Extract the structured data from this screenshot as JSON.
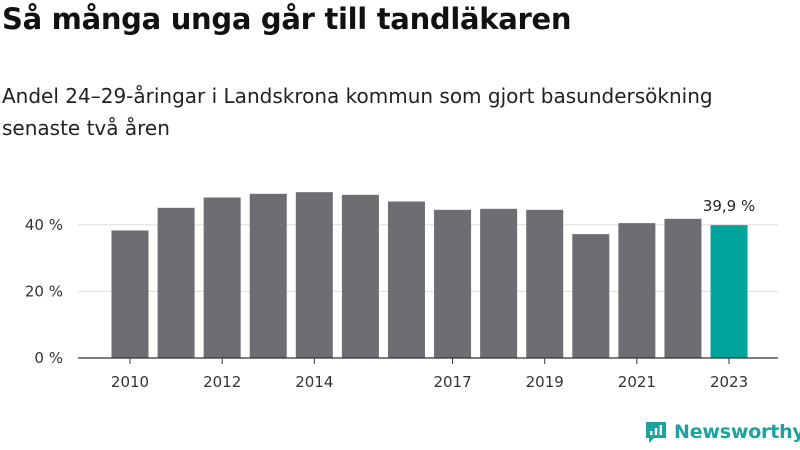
{
  "header": {
    "title": "Så många unga går till tandläkaren",
    "subtitle": "Andel 24–29-åringar i Landskrona kommun som gjort basundersökning senaste två åren"
  },
  "chart_data": {
    "type": "bar",
    "categories": [
      "2010",
      "2011",
      "2012",
      "2013",
      "2014",
      "2015",
      "2016",
      "2017",
      "2018",
      "2019",
      "2020",
      "2021",
      "2022",
      "2023"
    ],
    "x_tick_labels": [
      "2010",
      "",
      "2012",
      "",
      "2014",
      "",
      "",
      "2017",
      "",
      "2019",
      "",
      "2021",
      "",
      "2023"
    ],
    "series": [
      {
        "values": [
          38.3,
          45.1,
          48.2,
          49.3,
          49.8,
          49.0,
          47.0,
          44.5,
          44.8,
          44.5,
          37.2,
          40.5,
          41.8,
          39.9
        ]
      }
    ],
    "ylim": [
      0,
      50
    ],
    "y_ticks": [
      0,
      20,
      40
    ],
    "y_tick_labels": [
      "0 %",
      "20 %",
      "40 %"
    ],
    "grid": true,
    "bar_color": "#6e6d72",
    "highlight_color": "#00a49a",
    "highlight_index": 13,
    "data_labels": [
      {
        "index": 13,
        "text": "39,9 %"
      }
    ]
  },
  "brand": {
    "name": "Newsworthy",
    "color": "#1aa3a1"
  }
}
